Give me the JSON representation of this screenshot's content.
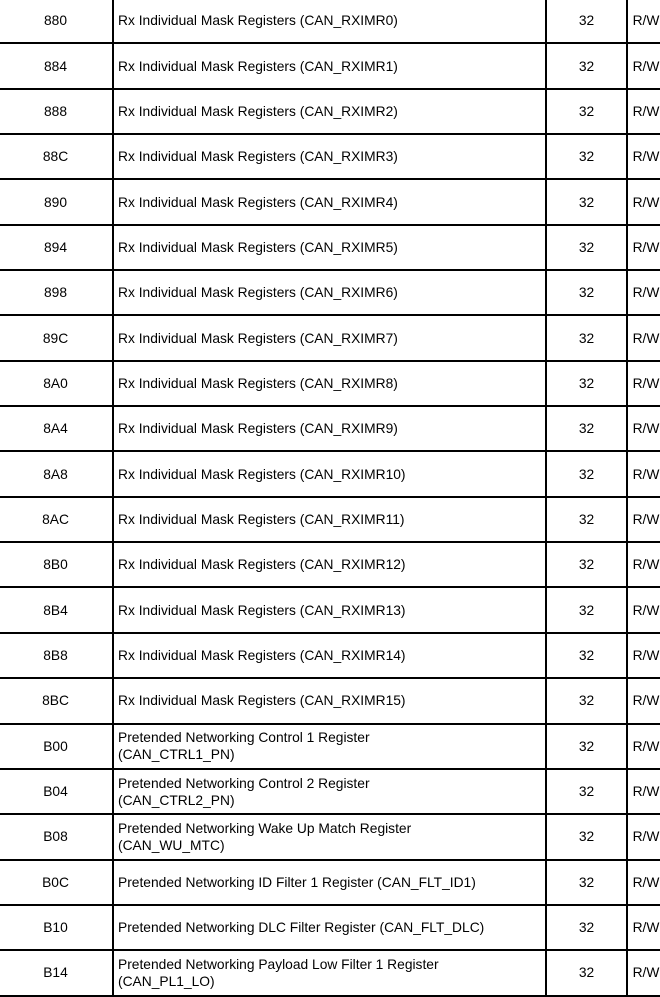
{
  "colors": {
    "background": "#ffffff",
    "border": "#000000",
    "text": "#000000"
  },
  "table": {
    "rows": [
      {
        "offset": "880",
        "description": "Rx Individual Mask Registers (CAN_RXIMR0)",
        "size": "32",
        "access": "R/W"
      },
      {
        "offset": "884",
        "description": "Rx Individual Mask Registers (CAN_RXIMR1)",
        "size": "32",
        "access": "R/W"
      },
      {
        "offset": "888",
        "description": "Rx Individual Mask Registers (CAN_RXIMR2)",
        "size": "32",
        "access": "R/W"
      },
      {
        "offset": "88C",
        "description": "Rx Individual Mask Registers (CAN_RXIMR3)",
        "size": "32",
        "access": "R/W"
      },
      {
        "offset": "890",
        "description": "Rx Individual Mask Registers (CAN_RXIMR4)",
        "size": "32",
        "access": "R/W"
      },
      {
        "offset": "894",
        "description": "Rx Individual Mask Registers (CAN_RXIMR5)",
        "size": "32",
        "access": "R/W"
      },
      {
        "offset": "898",
        "description": "Rx Individual Mask Registers (CAN_RXIMR6)",
        "size": "32",
        "access": "R/W"
      },
      {
        "offset": "89C",
        "description": "Rx Individual Mask Registers (CAN_RXIMR7)",
        "size": "32",
        "access": "R/W"
      },
      {
        "offset": "8A0",
        "description": "Rx Individual Mask Registers (CAN_RXIMR8)",
        "size": "32",
        "access": "R/W"
      },
      {
        "offset": "8A4",
        "description": "Rx Individual Mask Registers (CAN_RXIMR9)",
        "size": "32",
        "access": "R/W"
      },
      {
        "offset": "8A8",
        "description": "Rx Individual Mask Registers (CAN_RXIMR10)",
        "size": "32",
        "access": "R/W"
      },
      {
        "offset": "8AC",
        "description": "Rx Individual Mask Registers (CAN_RXIMR11)",
        "size": "32",
        "access": "R/W"
      },
      {
        "offset": "8B0",
        "description": "Rx Individual Mask Registers (CAN_RXIMR12)",
        "size": "32",
        "access": "R/W"
      },
      {
        "offset": "8B4",
        "description": "Rx Individual Mask Registers (CAN_RXIMR13)",
        "size": "32",
        "access": "R/W"
      },
      {
        "offset": "8B8",
        "description": "Rx Individual Mask Registers (CAN_RXIMR14)",
        "size": "32",
        "access": "R/W"
      },
      {
        "offset": "8BC",
        "description": "Rx Individual Mask Registers (CAN_RXIMR15)",
        "size": "32",
        "access": "R/W"
      },
      {
        "offset": "B00",
        "description": "Pretended Networking Control 1 Register\n(CAN_CTRL1_PN)",
        "size": "32",
        "access": "R/W"
      },
      {
        "offset": "B04",
        "description": "Pretended Networking Control 2 Register\n(CAN_CTRL2_PN)",
        "size": "32",
        "access": "R/W"
      },
      {
        "offset": "B08",
        "description": "Pretended Networking Wake Up Match Register\n(CAN_WU_MTC)",
        "size": "32",
        "access": "R/W"
      },
      {
        "offset": "B0C",
        "description": "Pretended Networking ID Filter 1 Register (CAN_FLT_ID1)",
        "size": "32",
        "access": "R/W"
      },
      {
        "offset": "B10",
        "description": "Pretended Networking DLC Filter Register (CAN_FLT_DLC)",
        "size": "32",
        "access": "R/W"
      },
      {
        "offset": "B14",
        "description": "Pretended Networking Payload Low Filter 1 Register\n(CAN_PL1_LO)",
        "size": "32",
        "access": "R/W"
      }
    ]
  }
}
